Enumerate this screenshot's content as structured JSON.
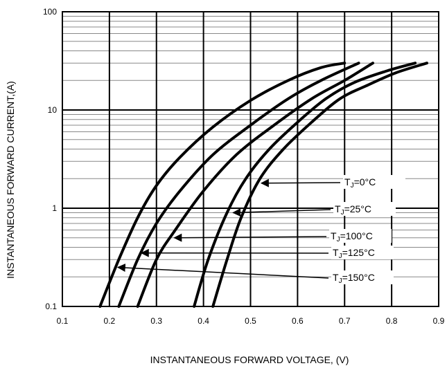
{
  "chart_data": {
    "type": "line",
    "title": "",
    "xlabel": "INSTANTANEOUS FORWARD VOLTAGE,  (V)",
    "ylabel": "INSTANTANEOUS FORWARD CURRENT,(A)",
    "xlim": [
      0.1,
      0.9
    ],
    "ylim": [
      0.1,
      100
    ],
    "yscale": "log",
    "grid": true,
    "x_ticks": [
      "0.1",
      "0.2",
      "0.3",
      "0.4",
      "0.5",
      "0.6",
      "0.7",
      "0.8",
      "0.9"
    ],
    "y_ticks": [
      "0.1",
      "1",
      "10",
      "100"
    ],
    "series": [
      {
        "name": "TJ=150°C",
        "label_text": "=150°C",
        "x": [
          0.18,
          0.22,
          0.26,
          0.3,
          0.35,
          0.42,
          0.5,
          0.58,
          0.65,
          0.7
        ],
        "y": [
          0.1,
          0.3,
          0.8,
          1.7,
          3.3,
          6.7,
          12.5,
          20,
          27,
          30
        ]
      },
      {
        "name": "TJ=125°C",
        "label_text": "=125°C",
        "x": [
          0.22,
          0.26,
          0.3,
          0.35,
          0.42,
          0.5,
          0.58,
          0.65,
          0.73
        ],
        "y": [
          0.1,
          0.3,
          0.7,
          1.5,
          3.5,
          7,
          13,
          20,
          30
        ]
      },
      {
        "name": "TJ=100°C",
        "label_text": "=100°C",
        "x": [
          0.26,
          0.3,
          0.34,
          0.4,
          0.47,
          0.55,
          0.63,
          0.7,
          0.76
        ],
        "y": [
          0.1,
          0.3,
          0.6,
          1.5,
          3.5,
          7,
          13,
          20,
          30
        ]
      },
      {
        "name": "TJ=25°C",
        "label_text": "=25°C",
        "x": [
          0.38,
          0.41,
          0.45,
          0.49,
          0.54,
          0.6,
          0.66,
          0.72,
          0.79,
          0.85
        ],
        "y": [
          0.1,
          0.3,
          0.9,
          2.0,
          4.0,
          7.5,
          13,
          19,
          25,
          30
        ]
      },
      {
        "name": "TJ=0°C",
        "label_text": "=0°C",
        "x": [
          0.42,
          0.45,
          0.48,
          0.52,
          0.57,
          0.63,
          0.69,
          0.75,
          0.81,
          0.875
        ],
        "y": [
          0.1,
          0.3,
          0.8,
          2.0,
          4.0,
          7.5,
          13,
          18,
          24,
          30
        ]
      }
    ],
    "annotations": [
      {
        "series": "TJ=0°C",
        "arrow_to": [
          0.52,
          1.8
        ]
      },
      {
        "series": "TJ=25°C",
        "arrow_to": [
          0.46,
          0.9
        ]
      },
      {
        "series": "TJ=100°C",
        "arrow_to": [
          0.335,
          0.5
        ]
      },
      {
        "series": "TJ=125°C",
        "arrow_to": [
          0.265,
          0.35
        ]
      },
      {
        "series": "TJ=150°C",
        "arrow_to": [
          0.215,
          0.25
        ]
      }
    ]
  }
}
